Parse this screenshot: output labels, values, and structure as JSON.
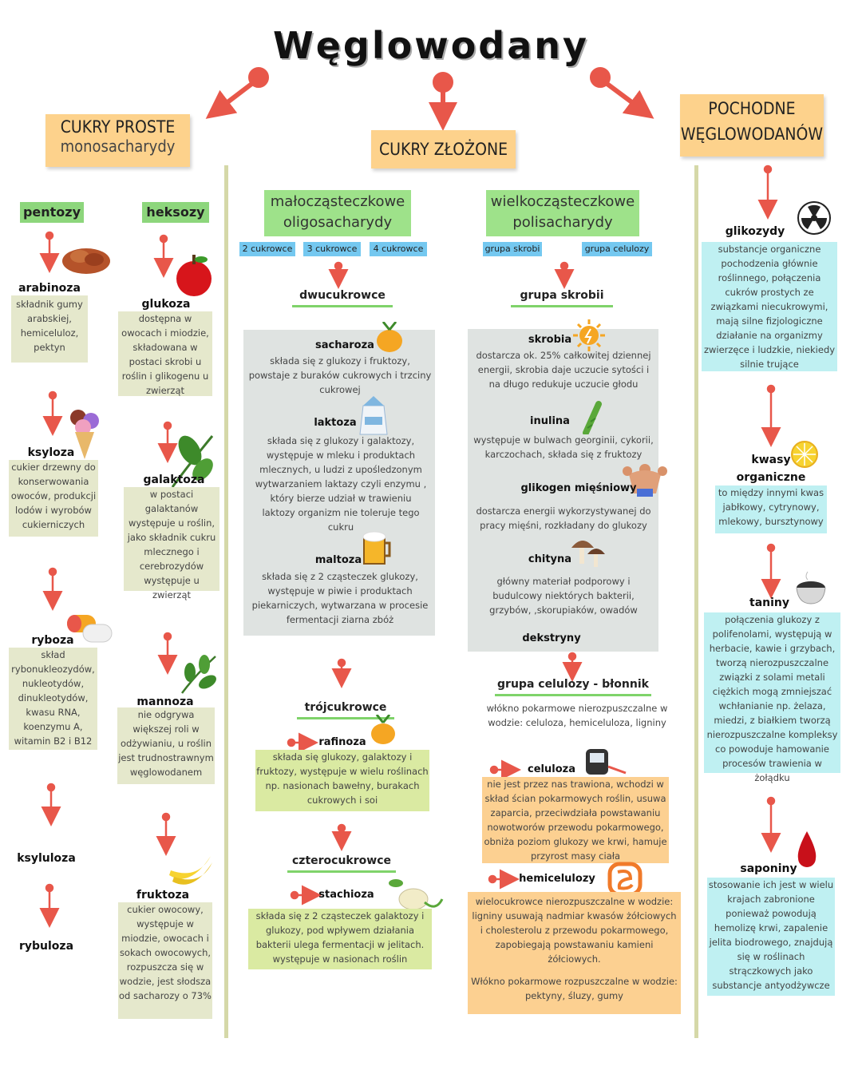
{
  "title": "Węglowodany",
  "headers": {
    "cukry_proste": {
      "line1": "CUKRY PROSTE",
      "line2": "monosacharydy"
    },
    "cukry_zlozone": "CUKRY ZŁOŻONE",
    "pochodne": {
      "line1": "POCHODNE",
      "line2": "WĘGLOWODANÓW"
    }
  },
  "proste": {
    "pentozy": "pentozy",
    "heksozy": "heksozy",
    "arabinoza": {
      "name": "arabinoza",
      "desc": "składnik gumy arabskiej, hemiceluloz, pektyn"
    },
    "ksyloza": {
      "name": "ksyloza",
      "desc": "cukier drzewny do konserwowania owoców, produkcji lodów i wyrobów cukierniczych"
    },
    "ryboza": {
      "name": "ryboza",
      "desc": "skład rybonukleozydów, nukleotydów, dinukleotydów, kwasu RNA, koenzymu A, witamin B2 i B12"
    },
    "ksyluloza": "ksyluloza",
    "rybuloza": "rybuloza",
    "glukoza": {
      "name": "glukoza",
      "desc": "dostępna w owocach i miodzie, składowana w postaci skrobi u roślin i glikogenu u zwierząt"
    },
    "galaktoza": {
      "name": "galaktoza",
      "desc": "w postaci galaktanów występuje u roślin, jako składnik cukru mlecznego i cerebrozydów występuje u zwierząt"
    },
    "mannoza": {
      "name": "mannoza",
      "desc": "nie odgrywa większej roli w odżywianiu, u roślin jest trudnostrawnym węglowodanem"
    },
    "fruktoza": {
      "name": "fruktoza",
      "desc": "cukier owocowy, występuje w miodzie, owocach i sokach owocowych, rozpuszcza się w wodzie, jest słodsza od sacharozy o 73%"
    }
  },
  "zlozone": {
    "oligo": {
      "line1": "małocząsteczkowe",
      "line2": "oligosacharydy"
    },
    "poli": {
      "line1": "wielkocząsteczkowe",
      "line2": "polisacharydy"
    },
    "tags_oligo": [
      "2 cukrowce",
      "3 cukrowce",
      "4 cukrowce"
    ],
    "tags_poli": [
      "grupa skrobi",
      "grupa celulozy"
    ],
    "dwucukrowce": "dwucukrowce",
    "sacharoza": {
      "name": "sacharoza",
      "desc": "składa się z glukozy i fruktozy, powstaje z buraków cukrowych i trzciny cukrowej"
    },
    "laktoza": {
      "name": "laktoza",
      "desc": "składa się z glukozy i galaktozy, występuje w mleku i produktach mlecznych, u ludzi z upośledzonym wytwarzaniem laktazy czyli enzymu , który bierze udział w trawieniu laktozy organizm nie toleruje tego cukru"
    },
    "maltoza": {
      "name": "maltoza",
      "desc": "składa się z 2 cząsteczek glukozy, występuje w piwie i produktach piekarniczych, wytwarzana w procesie fermentacji ziarna zbóż"
    },
    "trojcukrowce": "trójcukrowce",
    "rafinoza": {
      "name": "rafinoza",
      "desc": "składa się glukozy, galaktozy i fruktozy, występuje w wielu roślinach np. nasionach bawełny, burakach cukrowych i soi"
    },
    "czterocukrowce": "czterocukrowce",
    "stachioza": {
      "name": "stachioza",
      "desc": "składa się z 2 cząsteczek galaktozy i glukozy, pod wpływem działania bakterii ulega fermentacji w jelitach. występuje w nasionach roślin"
    },
    "grupa_skrobii": "grupa skrobii",
    "skrobia": {
      "name": "skrobia",
      "desc": "dostarcza ok. 25% całkowitej dziennej energii, skrobia daje uczucie sytości i na długo redukuje uczucie głodu"
    },
    "inulina": {
      "name": "inulina",
      "desc": "występuje w bulwach georginii, cykorii, karczochach, składa się z fruktozy"
    },
    "glikogen": {
      "name": "glikogen mięśniowy",
      "desc": "dostarcza energii wykorzystywanej do pracy mięśni, rozkładany do glukozy"
    },
    "chityna": {
      "name": "chityna",
      "desc": "główny materiał podporowy i budulcowy niektórych bakterii, grzybów, ,skorupiaków, owadów"
    },
    "dekstryny": "dekstryny",
    "grupa_celulozy": "grupa celulozy - błonnik",
    "celulozy_desc": "włókno pokarmowe nierozpuszczalne w wodzie: celuloza, hemiceluloza, ligniny",
    "celuloza": {
      "name": "celuloza",
      "desc": "nie jest przez nas trawiona, wchodzi w skład ścian pokarmowych roślin, usuwa zaparcia, przeciwdziała powstawaniu nowotworów przewodu pokarmowego, obniża poziom glukozy we krwi, hamuje przyrost masy ciała"
    },
    "hemicelulozy": {
      "name": "hemicelulozy",
      "desc": "wielocukrowce nierozpuszczalne w wodzie: ligniny usuwają nadmiar kwasów żółciowych i cholesterolu z przewodu pokarmowego, zapobiegają powstawaniu kamieni żółciowych.",
      "desc2": "Włókno pokarmowe rozpuszczalne w wodzie: pektyny, śluzy, gumy"
    }
  },
  "pochodne": {
    "glikozydy": {
      "name": "glikozydy",
      "desc": "substancje organiczne pochodzenia głównie roślinnego, połączenia cukrów prostych ze związkami niecukrowymi, mają silne fizjologiczne działanie na organizmy zwierzęce i ludzkie, niekiedy silnie trujące"
    },
    "kwasy": {
      "name": "kwasy organiczne",
      "desc": "to między innymi kwas jabłkowy, cytrynowy, mlekowy, bursztynowy"
    },
    "taniny": {
      "name": "taniny",
      "desc": "połączenia glukozy z polifenolami, występują w herbacie, kawie i grzybach, tworzą nierozpuszczalne związki z solami metali ciężkich mogą zmniejszać wchłanianie np. żelaza, miedzi, z białkiem tworzą nierozpuszczalne kompleksy co powoduje hamowanie procesów trawienia w żołądku"
    },
    "saponiny": {
      "name": "saponiny",
      "desc": "stosowanie ich jest w wielu krajach zabronione ponieważ powodują hemolizę krwi, zapalenie jelita biodrowego, znajdują się w roślinach strączkowych jako substancje antyodżywcze"
    }
  },
  "colors": {
    "arrow": "#e8574a",
    "header": "#fdd28c",
    "green": "#8dd67c",
    "blue": "#74c8f0",
    "line": "#d5d8a8"
  }
}
